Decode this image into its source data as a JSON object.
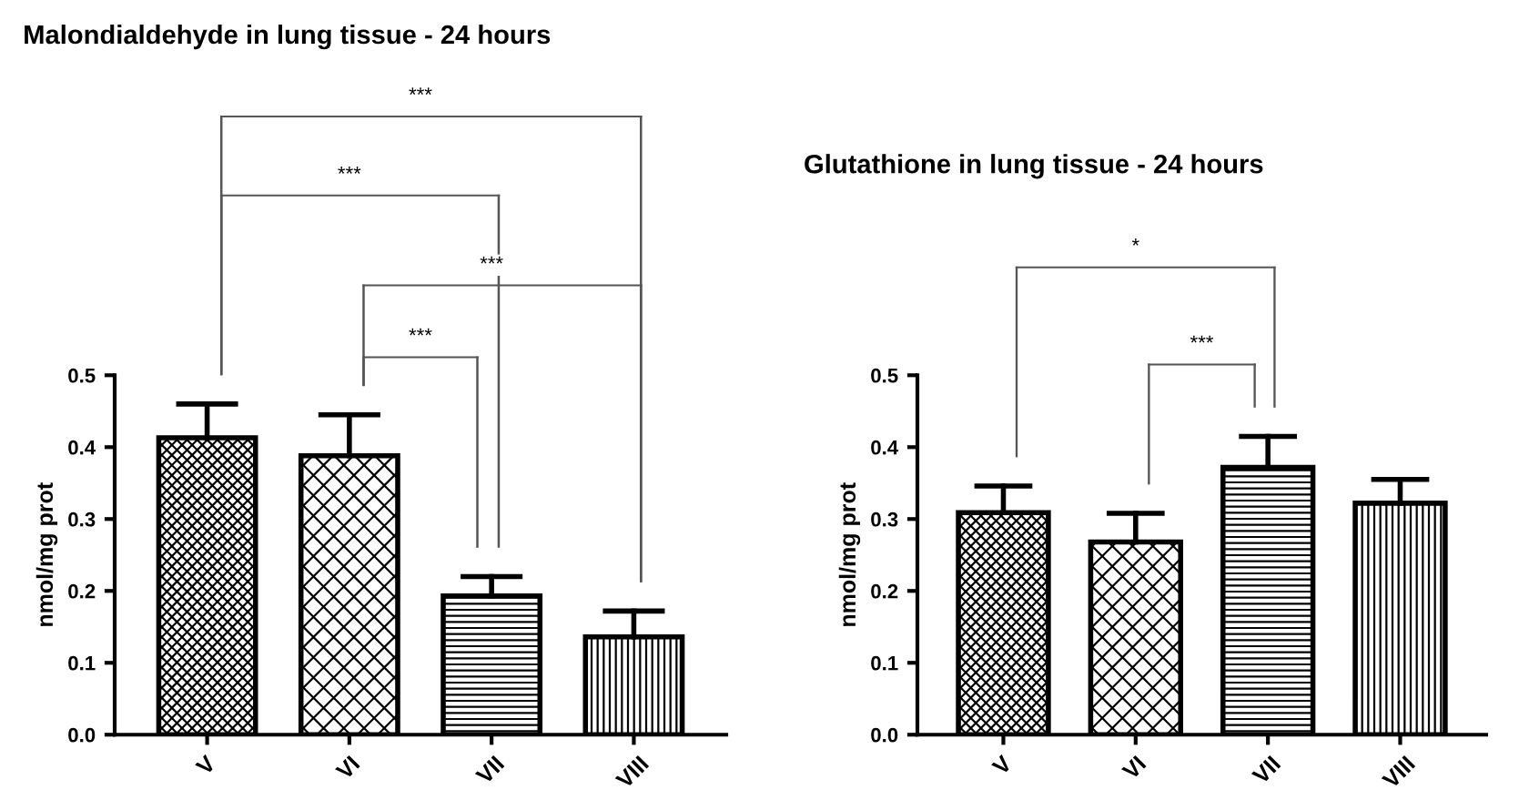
{
  "chart_data": [
    {
      "type": "bar",
      "title": "Malondialdehyde in lung tissue - 24 hours",
      "ylabel": "nmol/mg prot",
      "categories": [
        "V",
        "VI",
        "VII",
        "VIII"
      ],
      "values": [
        0.413,
        0.388,
        0.193,
        0.136
      ],
      "errors": [
        0.047,
        0.057,
        0.027,
        0.036
      ],
      "ylim": [
        0,
        0.5
      ],
      "yticks": [
        {
          "value": 0,
          "label": "0.0"
        },
        0.1,
        0.2,
        0.3,
        0.4,
        0.5
      ],
      "grid": false,
      "annotations": [
        "***",
        "***",
        "***",
        "***"
      ]
    },
    {
      "type": "bar",
      "title": "Glutathione in lung tissue - 24 hours",
      "ylabel": "nmol/mg prot",
      "categories": [
        "V",
        "VI",
        "VII",
        "VIII"
      ],
      "values": [
        0.309,
        0.268,
        0.372,
        0.322
      ],
      "errors": [
        0.037,
        0.04,
        0.043,
        0.033
      ],
      "ylim": [
        0,
        0.5
      ],
      "yticks": [
        {
          "value": 0,
          "label": "0.0"
        },
        0.1,
        0.2,
        0.3,
        0.4,
        0.5
      ],
      "grid": false,
      "annotations": [
        "*",
        "***"
      ]
    }
  ]
}
